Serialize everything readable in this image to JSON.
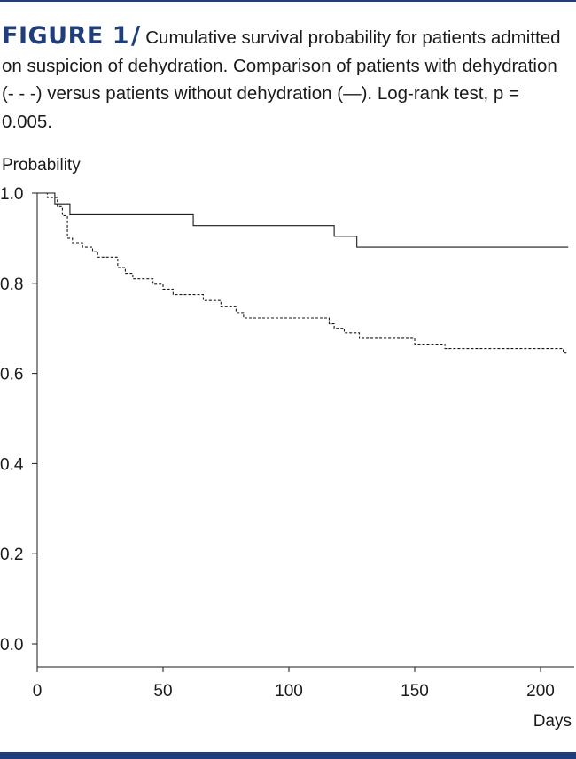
{
  "figure": {
    "label": "FIGURE 1",
    "slash": "/",
    "caption": "Cumulative survival probability for patients admitted on suspicion of dehydration. Comparison of patients with dehydration (- - -) versus patients without dehydration (—). Log-rank test, p = 0.005."
  },
  "colors": {
    "accent": "#1f3e7a",
    "line": "#1a1a1a"
  },
  "chart_data": {
    "type": "line",
    "step": true,
    "ylabel": "Probability",
    "xlabel": "Days",
    "xlim": [
      0,
      212
    ],
    "ylim": [
      0,
      1.0
    ],
    "xticks": [
      0,
      50,
      100,
      150,
      200
    ],
    "yticks": [
      0.0,
      0.2,
      0.4,
      0.6,
      0.8,
      1.0
    ],
    "ytick_labels": [
      "0.0",
      "0.2",
      "0.4",
      "0.6",
      "0.8",
      "1.0"
    ],
    "grid": false,
    "series": [
      {
        "style": "solid",
        "x": [
          0,
          7,
          13,
          62,
          118,
          127,
          211
        ],
        "y": [
          1.0,
          0.976,
          0.952,
          0.928,
          0.904,
          0.88,
          0.88
        ]
      },
      {
        "style": "dashed",
        "x": [
          0,
          4,
          8,
          10,
          12,
          14,
          18,
          22,
          24,
          32,
          35,
          38,
          46,
          50,
          54,
          56,
          66,
          73,
          79,
          82,
          116,
          118,
          122,
          128,
          133,
          150,
          162,
          186,
          209,
          211
        ],
        "y": [
          1.0,
          0.99,
          0.97,
          0.95,
          0.9,
          0.89,
          0.88,
          0.87,
          0.858,
          0.835,
          0.822,
          0.81,
          0.798,
          0.787,
          0.775,
          0.775,
          0.762,
          0.748,
          0.735,
          0.723,
          0.71,
          0.7,
          0.69,
          0.678,
          0.678,
          0.665,
          0.655,
          0.655,
          0.645,
          0.645
        ]
      }
    ]
  }
}
